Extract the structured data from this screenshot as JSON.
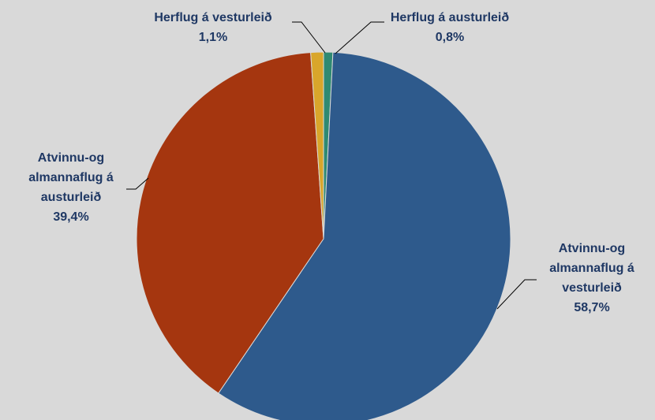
{
  "chart_data": {
    "type": "pie",
    "categories": [
      "Herflug á austurleið",
      "Atvinnu-og almannaflug á vesturleið",
      "Atvinnu-og almannaflug á austurleið",
      "Herflug á vesturleið"
    ],
    "values": [
      0.8,
      58.7,
      39.4,
      1.1
    ],
    "value_labels": [
      "0,8%",
      "58,7%",
      "39,4%",
      "1,1%"
    ],
    "colors": [
      "#2f8a72",
      "#2e5a8c",
      "#a5360f",
      "#d9a62b"
    ]
  }
}
